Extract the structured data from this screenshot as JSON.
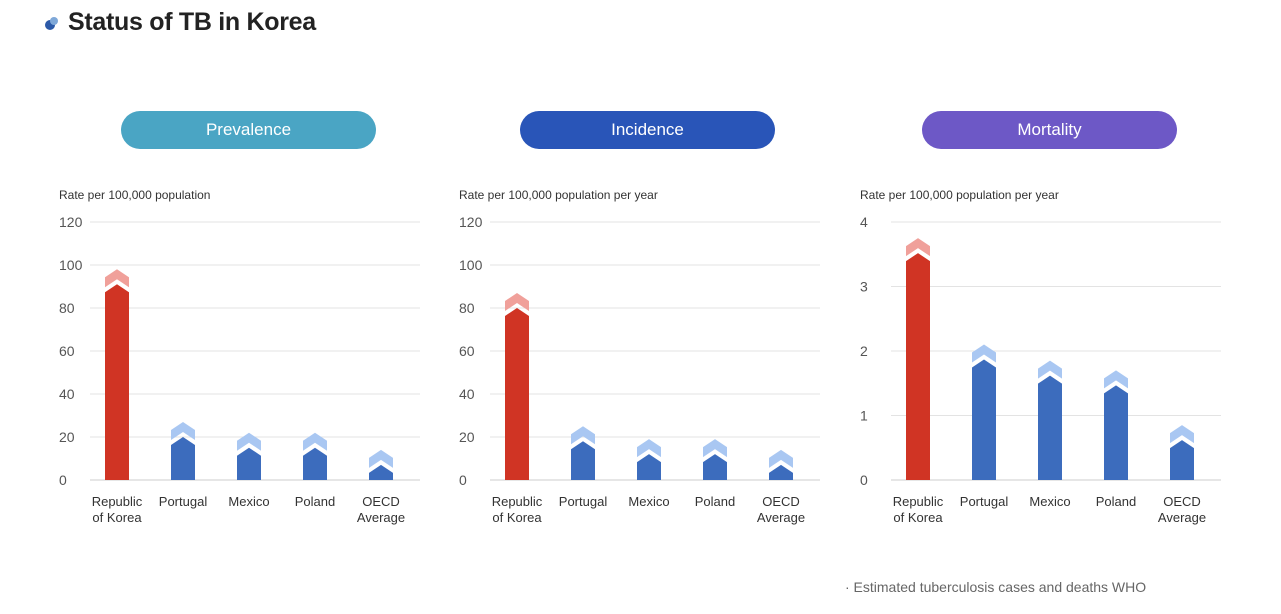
{
  "page": {
    "title": "Status of TB in Korea"
  },
  "colors": {
    "highlight": "#d03424",
    "highlight_tip": "#f0a09a",
    "bar": "#3c6cbd",
    "bar_tip": "#a9c7f2"
  },
  "chart_data": [
    {
      "type": "bar",
      "title": "Prevalence",
      "title_color": "#4aa5c4",
      "ylabel": "Rate per 100,000 population",
      "ylim": [
        0,
        120
      ],
      "yticks": [
        "0",
        "20",
        "40",
        "60",
        "80",
        "100",
        "120"
      ],
      "categories": [
        [
          "Republic",
          "of Korea"
        ],
        [
          "Portugal"
        ],
        [
          "Mexico"
        ],
        [
          "Poland"
        ],
        [
          "OECD",
          "Average"
        ]
      ],
      "values": [
        98,
        27,
        22,
        22,
        14
      ],
      "highlight_index": 0
    },
    {
      "type": "bar",
      "title": "Incidence",
      "title_color": "#2955b8",
      "ylabel": "Rate per 100,000 population per year",
      "ylim": [
        0,
        120
      ],
      "yticks": [
        "0",
        "20",
        "40",
        "60",
        "80",
        "100",
        "120"
      ],
      "categories": [
        [
          "Republic",
          "of Korea"
        ],
        [
          "Portugal"
        ],
        [
          "Mexico"
        ],
        [
          "Poland"
        ],
        [
          "OECD",
          "Average"
        ]
      ],
      "values": [
        87,
        25,
        19,
        19,
        14
      ],
      "highlight_index": 0
    },
    {
      "type": "bar",
      "title": "Mortality",
      "title_color": "#6d58c6",
      "ylabel": "Rate per 100,000 population per year",
      "ylim": [
        0,
        4
      ],
      "yticks": [
        "0",
        "1",
        "2",
        "3",
        "4"
      ],
      "categories": [
        [
          "Republic",
          "of Korea"
        ],
        [
          "Portugal"
        ],
        [
          "Mexico"
        ],
        [
          "Poland"
        ],
        [
          "OECD",
          "Average"
        ]
      ],
      "values": [
        3.75,
        2.1,
        1.85,
        1.7,
        0.85
      ],
      "highlight_index": 0
    }
  ],
  "source": "· Estimated tuberculosis cases and deaths WHO"
}
